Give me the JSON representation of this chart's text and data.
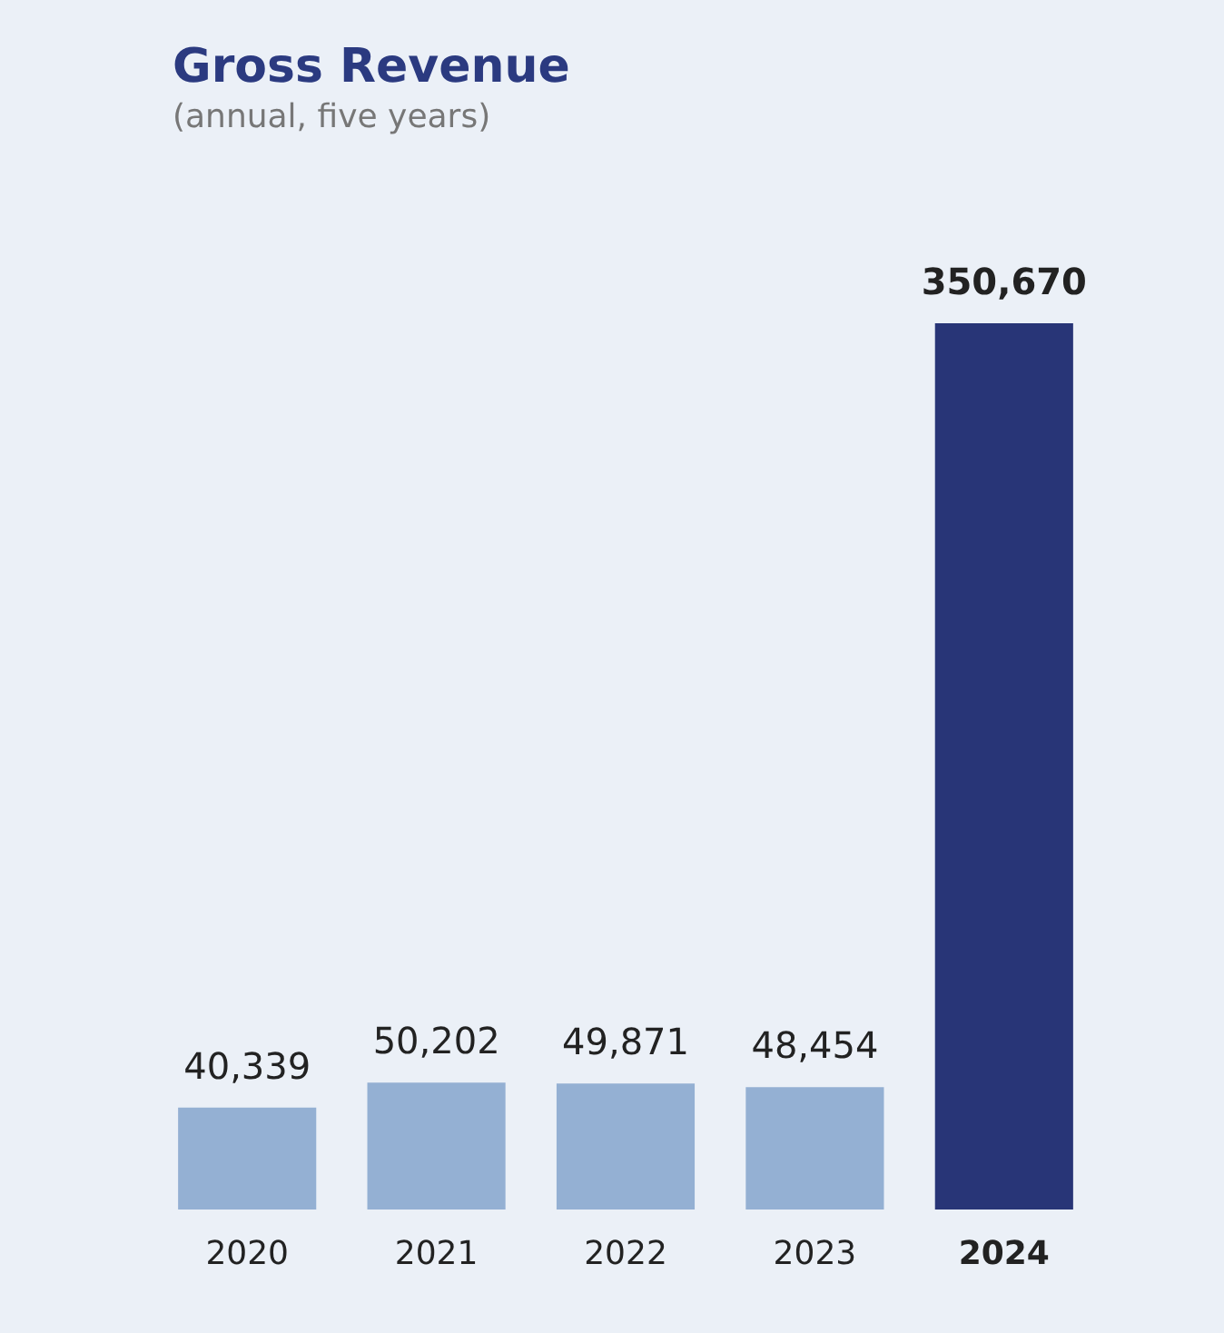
{
  "chart_data": {
    "type": "bar",
    "title": "Gross Revenue",
    "subtitle": "(annual, five years)",
    "categories": [
      "2020",
      "2021",
      "2022",
      "2023",
      "2024"
    ],
    "values": [
      40339,
      50202,
      49871,
      48454,
      350670
    ],
    "colors": [
      "#94b0d3",
      "#94b0d3",
      "#94b0d3",
      "#94b0d3",
      "#283577"
    ],
    "value_labels": [
      "40,339",
      "50,202",
      "49,871",
      "48,454",
      "350,670"
    ]
  }
}
